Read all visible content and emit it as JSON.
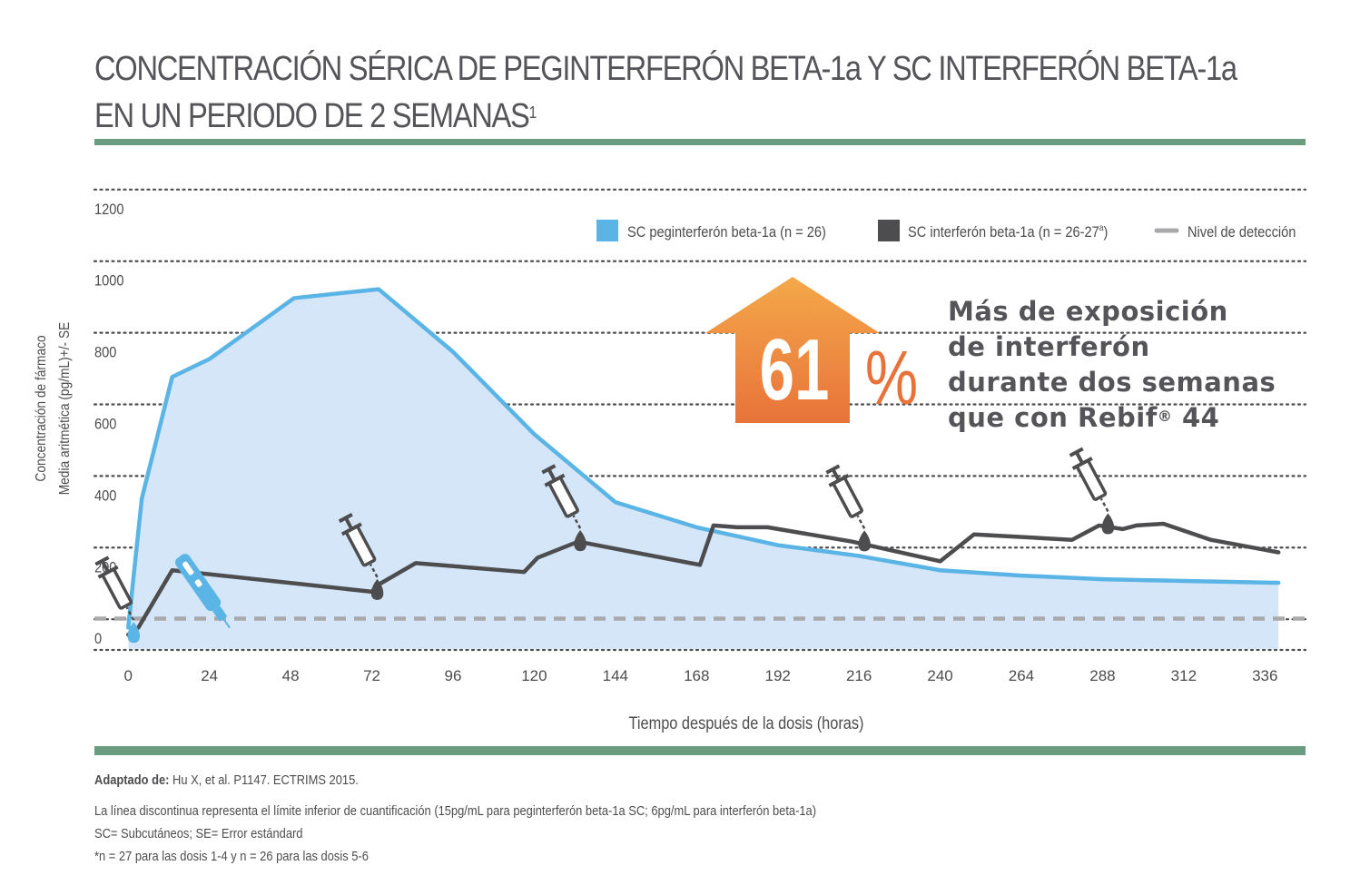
{
  "header": {
    "title_line1": "CONCENTRACIÓN SÉRICA DE PEGINTERFERÓN BETA-1a Y SC INTERFERÓN BETA-1a",
    "title_line2": "EN UN PERIODO DE 2 SEMANAS",
    "title_sup": "1"
  },
  "callout": {
    "big_number": "61",
    "percent": "%",
    "line1": "Más de exposición",
    "line2": "de interferón",
    "line3": "durante dos semanas",
    "line4_prefix": "que con Rebif",
    "line4_sup": "®",
    "line4_suffix": " 44"
  },
  "footer": {
    "source_label": "Adaptado de:",
    "source_text": " Hu X, et al. P1147. ECTRIMS 2015.",
    "note1": "La línea discontinua representa el límite inferior de cuantificación (15pg/mL para peginterferón beta-1a SC; 6pg/mL para interferón beta-1a)",
    "note2": "SC= Subcutáneos; SE= Error estándard",
    "note3": "*n = 27 para las dosis 1-4 y n = 26 para las dosis 5-6"
  },
  "colors": {
    "peg_line": "#5ab4e5",
    "peg_fill": "#d4e6f7",
    "ifn_line": "#4d4d4f",
    "detection": "#a9a9ab",
    "grid": "#4d4d4f",
    "rule": "#6a9c7f",
    "arrow_top": "#f4a84a",
    "arrow_bottom": "#e8733a"
  },
  "chart_data": {
    "type": "line",
    "xlabel": "Tiempo después de la dosis (horas)",
    "ylabel_line1": "Concentración de fármaco",
    "ylabel_line2": "Media aritmética (pg/mL)+/- SE",
    "xlim": [
      -10,
      348
    ],
    "ylim": [
      -30,
      1230
    ],
    "x_ticks": [
      0,
      24,
      48,
      72,
      96,
      120,
      144,
      168,
      192,
      216,
      240,
      264,
      288,
      312,
      336
    ],
    "y_ticks": [
      0,
      200,
      400,
      600,
      800,
      1000,
      1200
    ],
    "grid": true,
    "legend_position": "top-right",
    "legend": [
      {
        "label": "SC peginterferón beta-1a (n = 26)",
        "style": "square",
        "color": "#5ab4e5"
      },
      {
        "label_prefix": "SC interferón beta-1a (n = 26-27",
        "label_sup": "a",
        "label_suffix": ")",
        "style": "square",
        "color": "#4d4d4f"
      },
      {
        "label": "Nivel de detección",
        "style": "dash",
        "color": "#a9a9ab"
      }
    ],
    "detection_level": 55,
    "series": [
      {
        "name": "SC peginterferón beta-1a (n = 26)",
        "color": "#5ab4e5",
        "fill": true,
        "points": [
          [
            0,
            30
          ],
          [
            4,
            390
          ],
          [
            13,
            730
          ],
          [
            24,
            780
          ],
          [
            49,
            950
          ],
          [
            74,
            975
          ],
          [
            96,
            800
          ],
          [
            120,
            570
          ],
          [
            144,
            380
          ],
          [
            168,
            310
          ],
          [
            192,
            260
          ],
          [
            216,
            230
          ],
          [
            240,
            190
          ],
          [
            264,
            175
          ],
          [
            288,
            165
          ],
          [
            312,
            160
          ],
          [
            340,
            155
          ]
        ]
      },
      {
        "name": "SC interferón beta-1a (n = 26-27a)",
        "color": "#4d4d4f",
        "fill": false,
        "points": [
          [
            0,
            10
          ],
          [
            3,
            30
          ],
          [
            13,
            190
          ],
          [
            72,
            130
          ],
          [
            74,
            150
          ],
          [
            85,
            210
          ],
          [
            117,
            185
          ],
          [
            121,
            225
          ],
          [
            133,
            270
          ],
          [
            169,
            205
          ],
          [
            173,
            315
          ],
          [
            180,
            310
          ],
          [
            189,
            310
          ],
          [
            214,
            270
          ],
          [
            240,
            215
          ],
          [
            250,
            290
          ],
          [
            279,
            275
          ],
          [
            287,
            315
          ],
          [
            294,
            305
          ],
          [
            298,
            315
          ],
          [
            306,
            320
          ],
          [
            320,
            275
          ],
          [
            340,
            240
          ]
        ]
      }
    ],
    "dose_markers_hours": [
      0,
      72,
      132,
      216,
      288
    ]
  }
}
